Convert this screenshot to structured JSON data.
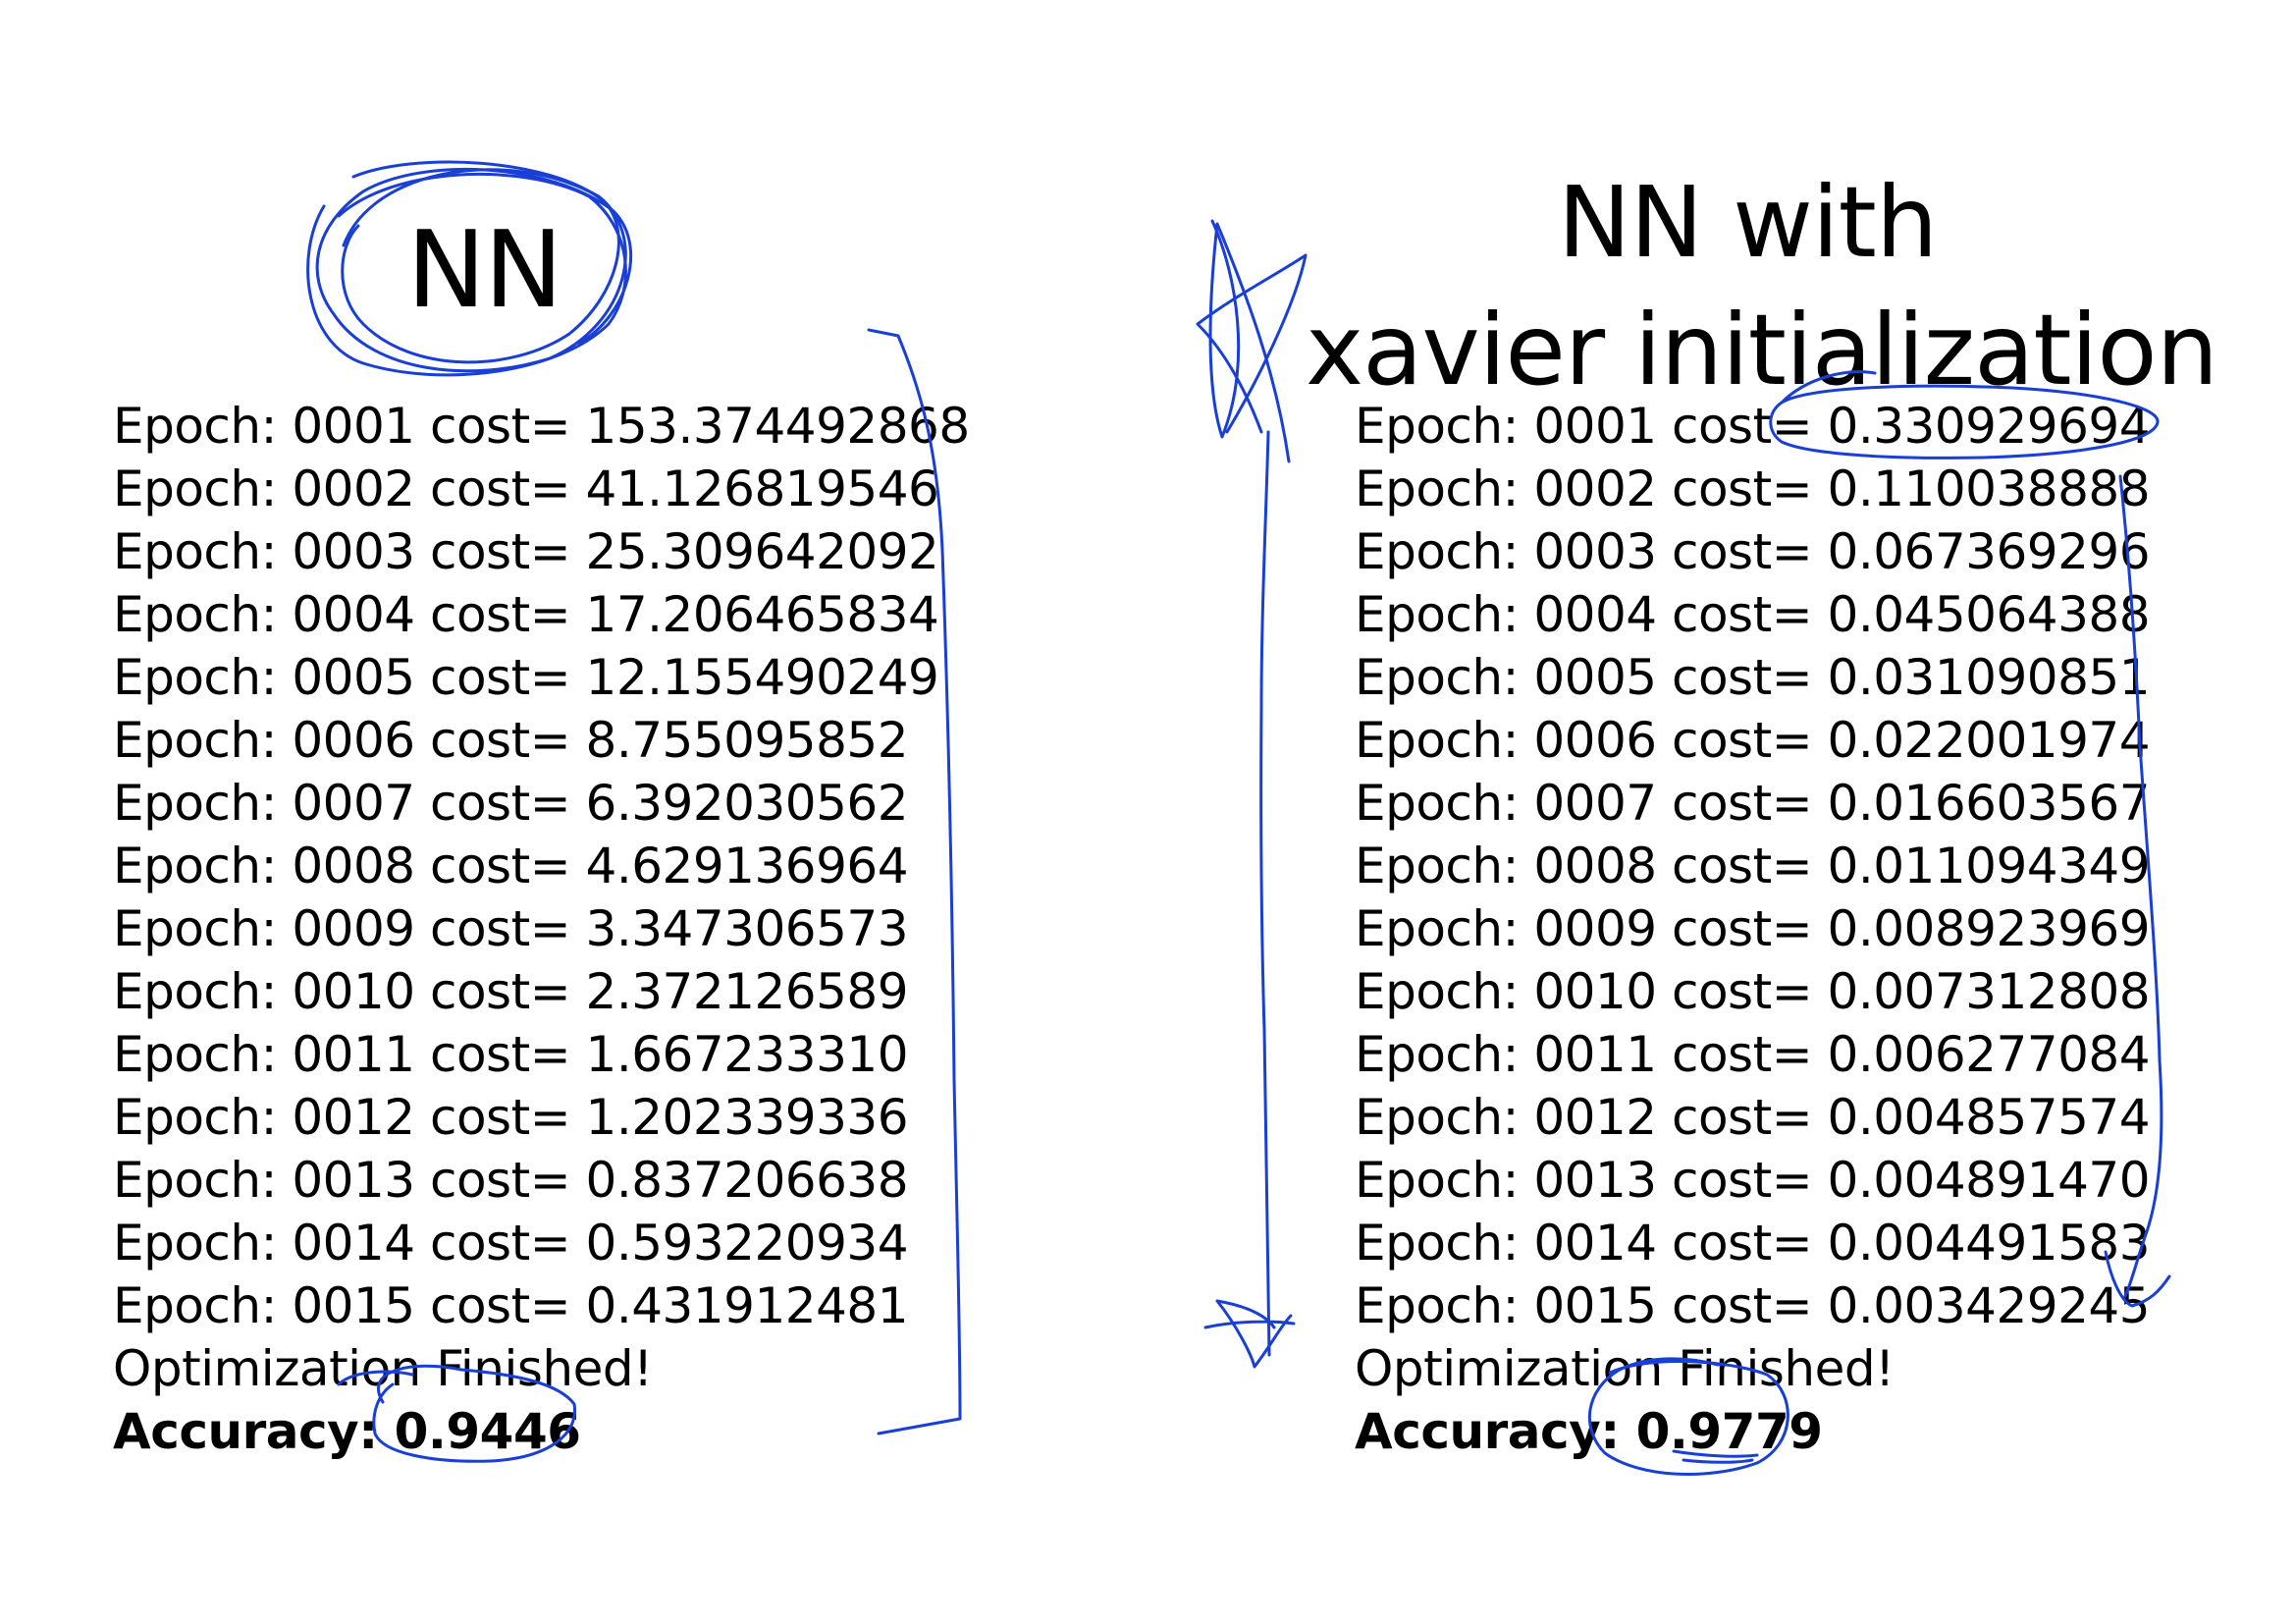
{
  "left_panel": {
    "title": "NN",
    "lines": [
      "Epoch: 0001 cost= 153.374492868",
      "Epoch: 0002 cost= 41.126819546",
      "Epoch: 0003 cost= 25.309642092",
      "Epoch: 0004 cost= 17.206465834",
      "Epoch: 0005 cost= 12.155490249",
      "Epoch: 0006 cost= 8.755095852",
      "Epoch: 0007 cost= 6.392030562",
      "Epoch: 0008 cost= 4.629136964",
      "Epoch: 0009 cost= 3.347306573",
      "Epoch: 0010 cost= 2.372126589",
      "Epoch: 0011 cost= 1.667233310",
      "Epoch: 0012 cost= 1.202339336",
      "Epoch: 0013 cost= 0.837206638",
      "Epoch: 0014 cost= 0.593220934",
      "Epoch: 0015 cost= 0.431912481",
      "Optimization Finished!"
    ],
    "accuracy": "Accuracy: 0.9446"
  },
  "right_panel": {
    "title_line1": "NN with",
    "title_line2": "xavier initialization",
    "lines": [
      "Epoch: 0001 cost= 0.330929694",
      "Epoch: 0002 cost= 0.110038888",
      "Epoch: 0003 cost= 0.067369296",
      "Epoch: 0004 cost= 0.045064388",
      "Epoch: 0005 cost= 0.031090851",
      "Epoch: 0006 cost= 0.022001974",
      "Epoch: 0007 cost= 0.016603567",
      "Epoch: 0008 cost= 0.011094349",
      "Epoch: 0009 cost= 0.008923969",
      "Epoch: 0010 cost= 0.007312808",
      "Epoch: 0011 cost= 0.006277084",
      "Epoch: 0012 cost= 0.004857574",
      "Epoch: 0013 cost= 0.004891470",
      "Epoch: 0014 cost= 0.004491583",
      "Epoch: 0015 cost= 0.003429245",
      "Optimization Finished!"
    ],
    "accuracy": "Accuracy: 0.9779"
  },
  "annotation_color": "#1a3fd6"
}
